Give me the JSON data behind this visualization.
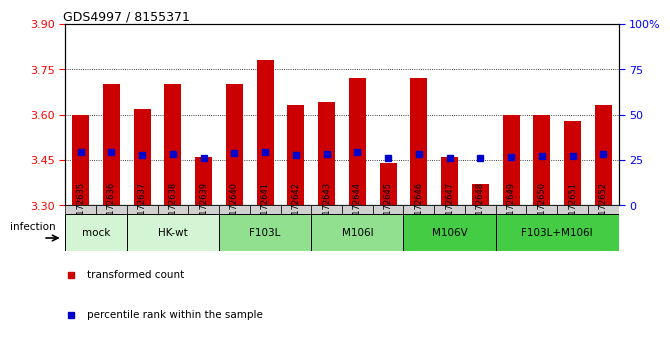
{
  "title": "GDS4997 / 8155371",
  "samples": [
    "GSM1172635",
    "GSM1172636",
    "GSM1172637",
    "GSM1172638",
    "GSM1172639",
    "GSM1172640",
    "GSM1172641",
    "GSM1172642",
    "GSM1172643",
    "GSM1172644",
    "GSM1172645",
    "GSM1172646",
    "GSM1172647",
    "GSM1172648",
    "GSM1172649",
    "GSM1172650",
    "GSM1172651",
    "GSM1172652"
  ],
  "bar_values": [
    3.6,
    3.7,
    3.62,
    3.7,
    3.46,
    3.7,
    3.78,
    3.63,
    3.64,
    3.72,
    3.44,
    3.72,
    3.46,
    3.37,
    3.6,
    3.6,
    3.58,
    3.63
  ],
  "blue_values": [
    3.475,
    3.475,
    3.465,
    3.47,
    3.455,
    3.473,
    3.475,
    3.468,
    3.47,
    3.477,
    3.455,
    3.47,
    3.456,
    3.456,
    3.46,
    3.462,
    3.462,
    3.47
  ],
  "groups": [
    {
      "label": "mock",
      "color": "#d4f5d4",
      "start": 0,
      "end": 2
    },
    {
      "label": "HK-wt",
      "color": "#d4f5d4",
      "start": 2,
      "end": 5
    },
    {
      "label": "F103L",
      "color": "#90e090",
      "start": 5,
      "end": 8
    },
    {
      "label": "M106I",
      "color": "#90e090",
      "start": 8,
      "end": 11
    },
    {
      "label": "M106V",
      "color": "#44cc44",
      "start": 11,
      "end": 14
    },
    {
      "label": "F103L+M106I",
      "color": "#44cc44",
      "start": 14,
      "end": 18
    }
  ],
  "ylim": [
    3.3,
    3.9
  ],
  "yticks": [
    3.3,
    3.45,
    3.6,
    3.75,
    3.9
  ],
  "y2ticks": [
    0,
    25,
    50,
    75,
    100
  ],
  "bar_color": "#cc0000",
  "blue_color": "#0000cc",
  "tick_bg_color": "#d0d0d0"
}
